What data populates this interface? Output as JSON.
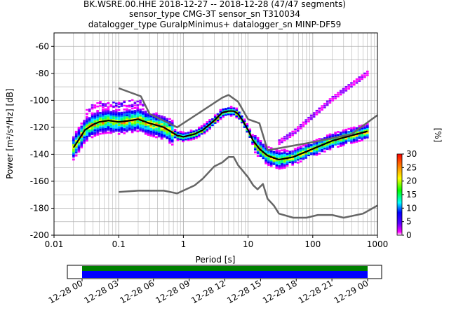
{
  "title_lines": [
    "BK.WSRE.00.HHE   2018-12-27 -- 2018-12-28  (47/47 segments)",
    "sensor_type CMG-3T sensor_sn T310034",
    "datalogger_type GuralpMinimus+ datalogger_sn MINP-DF59"
  ],
  "colorbar": {
    "label": "[%]",
    "ticks": [
      "0",
      "5",
      "10",
      "15",
      "20",
      "25",
      "30"
    ],
    "range": [
      0,
      30
    ]
  },
  "timeline": {
    "ticks": [
      "12-28 00",
      "12-28 03",
      "12-28 06",
      "12-28 09",
      "12-28 12",
      "12-28 15",
      "12-28 18",
      "12-28 21",
      "12-29 00"
    ],
    "colors": {
      "top": "#008000",
      "bottom": "#0000ff"
    }
  },
  "colors": {
    "noise_model": "#666666",
    "mean_curve": "#000000",
    "grid": "#b0b0b0"
  },
  "chart_data": {
    "type": "heatmap",
    "title": "BK.WSRE.00.HHE   2018-12-27 -- 2018-12-28  (47/47 segments)",
    "xlabel": "Period [s]",
    "ylabel": "Power [m²/s⁴/Hz] [dB]",
    "xscale": "log",
    "xlim": [
      0.01,
      1000
    ],
    "ylim": [
      -200,
      -50
    ],
    "xticks": [
      "0.01",
      "0.1",
      "1",
      "10",
      "100",
      "1000"
    ],
    "yticks": [
      "-60",
      "-80",
      "-100",
      "-120",
      "-140",
      "-160",
      "-180",
      "-200"
    ],
    "grid": true,
    "series": [
      {
        "kind": "mean",
        "points": [
          [
            0.02,
            -135
          ],
          [
            0.025,
            -128
          ],
          [
            0.03,
            -122
          ],
          [
            0.04,
            -118
          ],
          [
            0.05,
            -116
          ],
          [
            0.07,
            -115
          ],
          [
            0.1,
            -116
          ],
          [
            0.15,
            -115
          ],
          [
            0.2,
            -114
          ],
          [
            0.3,
            -117
          ],
          [
            0.5,
            -120
          ],
          [
            0.8,
            -126
          ],
          [
            1,
            -127
          ],
          [
            1.5,
            -125
          ],
          [
            2,
            -122
          ],
          [
            3,
            -115
          ],
          [
            4,
            -109
          ],
          [
            5,
            -108
          ],
          [
            6,
            -108
          ],
          [
            7,
            -110
          ],
          [
            8,
            -114
          ],
          [
            10,
            -122
          ],
          [
            12,
            -130
          ],
          [
            15,
            -136
          ],
          [
            20,
            -141
          ],
          [
            30,
            -144
          ],
          [
            50,
            -142
          ],
          [
            100,
            -136
          ],
          [
            200,
            -130
          ],
          [
            400,
            -126
          ],
          [
            700,
            -123
          ]
        ]
      },
      {
        "kind": "noise_model_high",
        "points": [
          [
            0.1,
            -91
          ],
          [
            0.22,
            -97
          ],
          [
            0.3,
            -110
          ],
          [
            0.8,
            -120
          ],
          [
            4,
            -98
          ],
          [
            5,
            -96
          ],
          [
            7,
            -101
          ],
          [
            10,
            -114
          ],
          [
            15,
            -117
          ],
          [
            20,
            -137
          ],
          [
            100,
            -131
          ],
          [
            400,
            -125
          ],
          [
            1000,
            -111
          ]
        ]
      },
      {
        "kind": "noise_model_low",
        "points": [
          [
            0.1,
            -168
          ],
          [
            0.2,
            -167
          ],
          [
            0.5,
            -167
          ],
          [
            0.8,
            -169
          ],
          [
            1.5,
            -163
          ],
          [
            2,
            -158
          ],
          [
            3,
            -149
          ],
          [
            4,
            -146
          ],
          [
            5,
            -142
          ],
          [
            6,
            -142
          ],
          [
            7,
            -148
          ],
          [
            10,
            -157
          ],
          [
            12,
            -163
          ],
          [
            14,
            -166
          ],
          [
            17,
            -162
          ],
          [
            20,
            -173
          ],
          [
            25,
            -178
          ],
          [
            30,
            -184
          ],
          [
            50,
            -187
          ],
          [
            80,
            -187
          ],
          [
            120,
            -185
          ],
          [
            200,
            -185
          ],
          [
            300,
            -187
          ],
          [
            600,
            -184
          ],
          [
            1000,
            -178
          ]
        ]
      }
    ]
  }
}
